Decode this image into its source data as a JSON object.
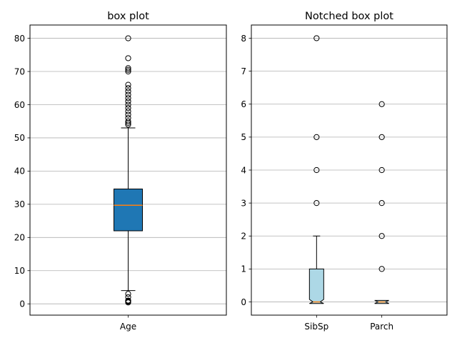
{
  "chart_data": [
    {
      "type": "box",
      "title": "box plot",
      "xlabel": "",
      "ylabel": "",
      "ylim": [
        -3.4,
        84
      ],
      "yticks": [
        0,
        10,
        20,
        30,
        40,
        50,
        60,
        70,
        80
      ],
      "grid": "horizontal",
      "notched": false,
      "box_color": "#1f77b4",
      "median_color": "#ff7f0e",
      "boxes": [
        {
          "label": "Age",
          "q1": 22,
          "median": 29.7,
          "q3": 34.6,
          "whisker_low": 4,
          "whisker_high": 53,
          "outliers": [
            54,
            54.5,
            55,
            56,
            57,
            58,
            59,
            60,
            61,
            62,
            63,
            64,
            65,
            66,
            70,
            70.5,
            71,
            74,
            80,
            0.42,
            0.67,
            0.75,
            0.83,
            0.92,
            1,
            2,
            3
          ]
        }
      ]
    },
    {
      "type": "box",
      "title": "Notched box plot",
      "xlabel": "",
      "ylabel": "",
      "ylim": [
        -0.4,
        8.4
      ],
      "yticks": [
        0,
        1,
        2,
        3,
        4,
        5,
        6,
        7,
        8
      ],
      "grid": "horizontal",
      "notched": true,
      "box_color": "#add8e6",
      "median_color": "#ff7f0e",
      "boxes": [
        {
          "label": "SibSp",
          "q1": 0,
          "median": 0,
          "q3": 1,
          "whisker_low": 0,
          "whisker_high": 2,
          "outliers": [
            3,
            4,
            5,
            8
          ]
        },
        {
          "label": "Parch",
          "q1": 0,
          "median": 0,
          "q3": 0,
          "whisker_low": 0,
          "whisker_high": 0,
          "outliers": [
            1,
            2,
            3,
            4,
            5,
            6
          ]
        }
      ]
    }
  ]
}
